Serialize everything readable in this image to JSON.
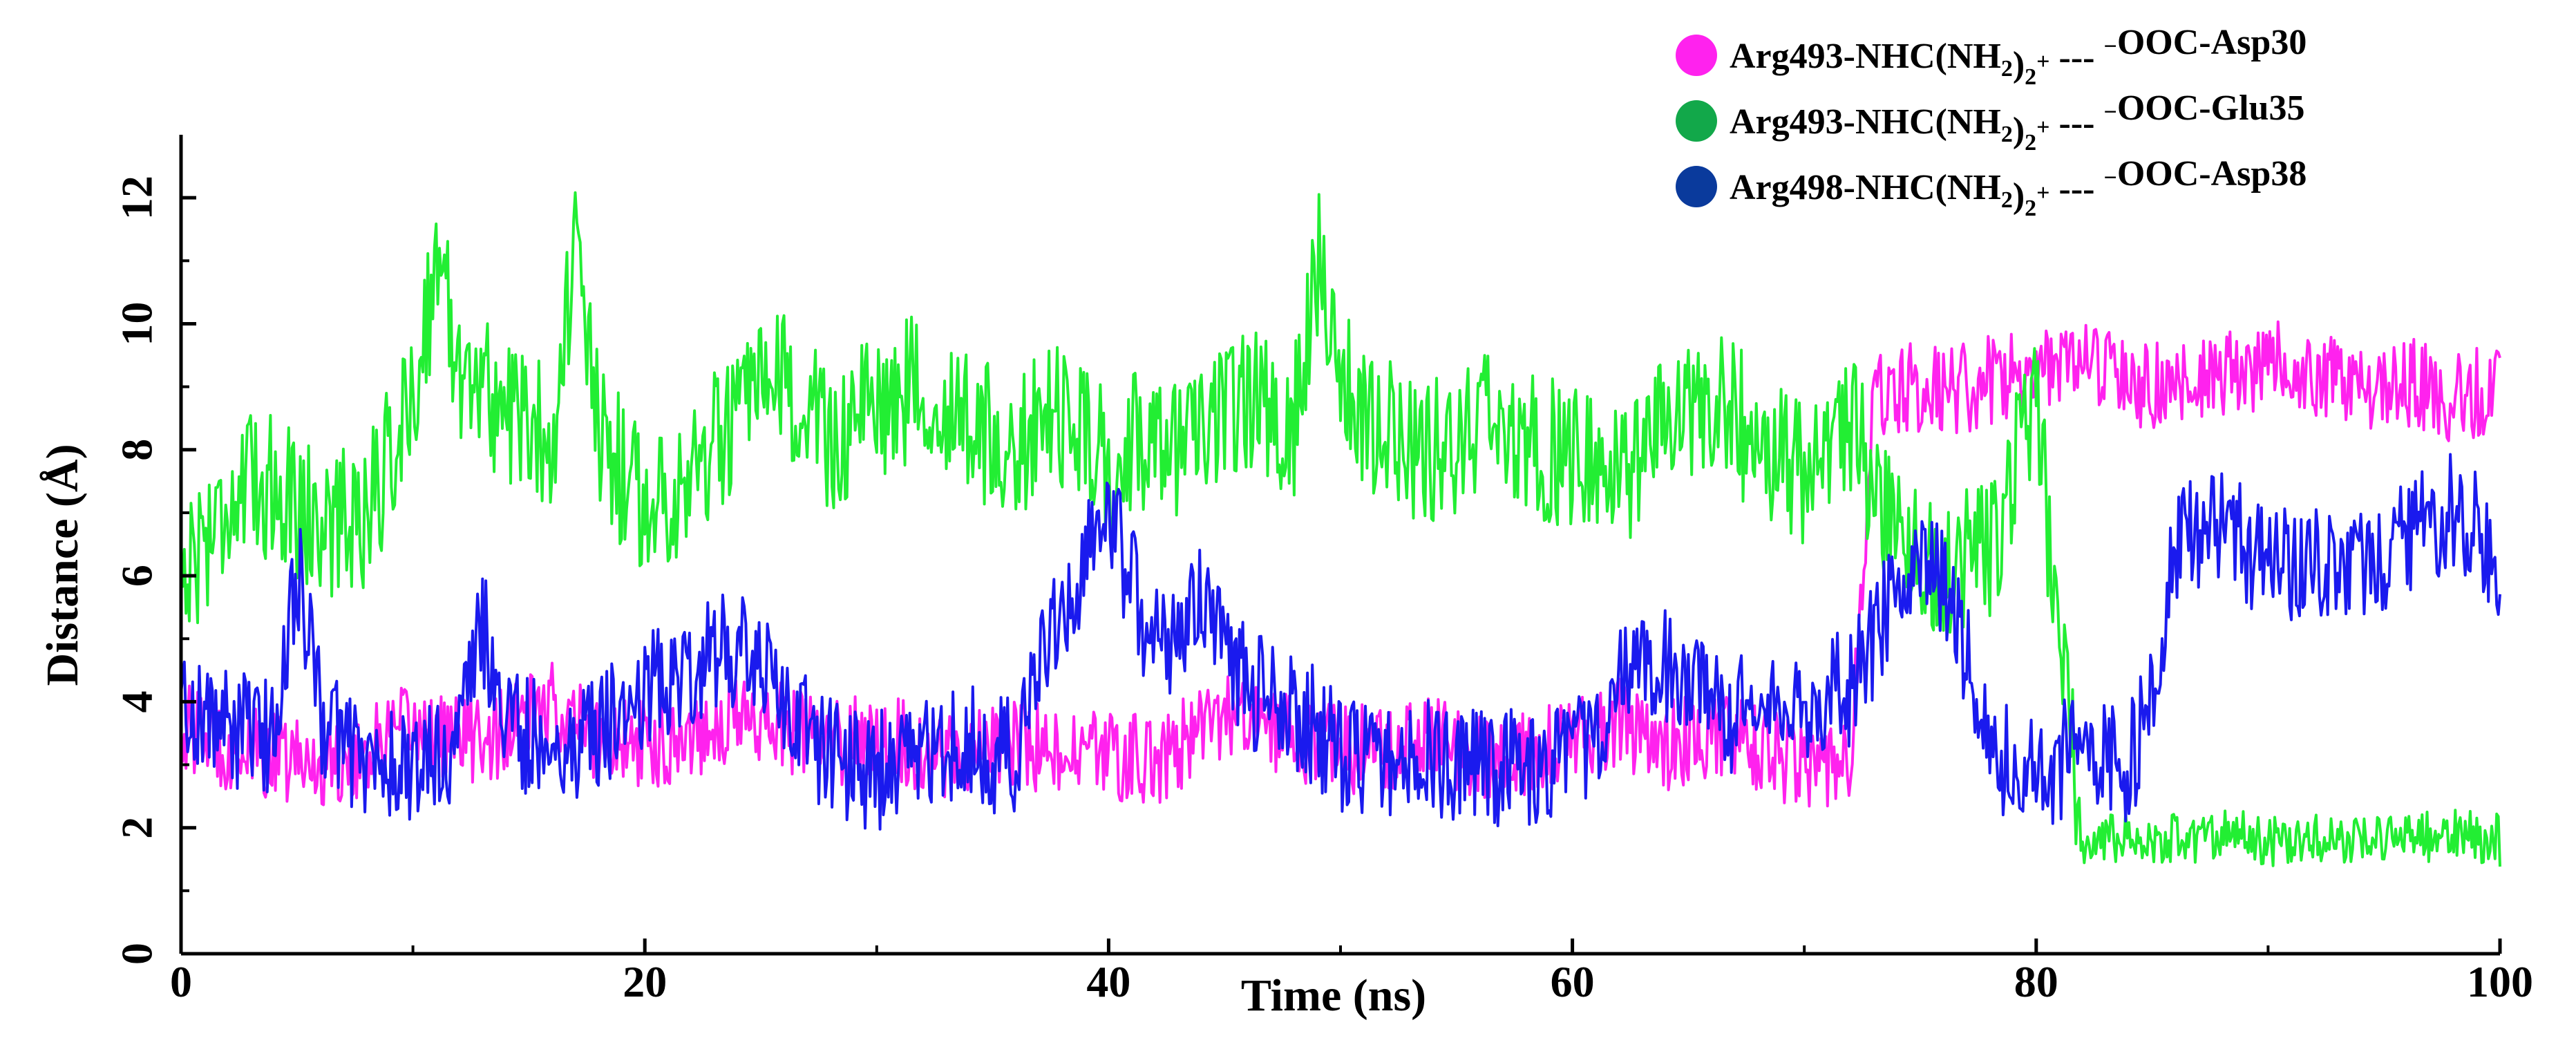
{
  "chart_data": {
    "type": "line",
    "xlabel": "Time (ns)",
    "ylabel": "Distance (Å)",
    "xlim": [
      0,
      100
    ],
    "ylim": [
      0,
      13
    ],
    "x_ticks": [
      "0",
      "20",
      "40",
      "60",
      "80",
      "100"
    ],
    "y_ticks": [
      "0",
      "2",
      "4",
      "6",
      "8",
      "10",
      "12"
    ],
    "grid": false,
    "legend_position": "top-right",
    "series": [
      {
        "name": "Arg493-NHC(NH2)2+ --- -OOC-Asp30",
        "legend": {
          "prefix": "Arg493-NHC(NH",
          "sub": "2",
          "mid": ")",
          "sub2": "2",
          "sup": "+",
          "dash": " --- ",
          "sup2": "−",
          "suffix": "OOC-Asp30"
        },
        "color": "#ff22ee",
        "marker_color": "#ff22ee",
        "x": [
          0,
          2,
          4,
          6,
          8,
          10,
          12,
          14,
          16,
          18,
          20,
          22,
          24,
          26,
          28,
          30,
          32,
          34,
          36,
          38,
          40,
          42,
          44,
          46,
          48,
          50,
          52,
          54,
          56,
          58,
          60,
          62,
          64,
          66,
          68,
          70,
          72,
          73,
          74,
          76,
          78,
          80,
          82,
          84,
          86,
          88,
          90,
          92,
          94,
          96,
          98,
          100
        ],
        "y": [
          3.6,
          3.3,
          3.1,
          3.0,
          3.2,
          3.6,
          3.4,
          3.5,
          3.9,
          3.4,
          3.3,
          3.5,
          3.8,
          3.6,
          3.3,
          3.5,
          3.2,
          3.2,
          3.4,
          3.1,
          3.2,
          3.0,
          3.6,
          3.8,
          3.4,
          3.2,
          3.3,
          3.5,
          3.1,
          3.2,
          3.4,
          3.7,
          3.3,
          3.5,
          3.2,
          3.0,
          3.1,
          8.8,
          9.0,
          8.9,
          9.1,
          9.2,
          9.3,
          9.1,
          9.0,
          9.1,
          9.4,
          9.2,
          8.9,
          9.1,
          8.8,
          9.0
        ]
      },
      {
        "name": "Arg493-NHC(NH2)2+ --- -OOC-Glu35",
        "legend": {
          "prefix": "Arg493-NHC(NH",
          "sub": "2",
          "mid": ")",
          "sub2": "2",
          "sup": "+",
          "dash": " --- ",
          "sup2": "−",
          "suffix": "OOC-Glu35"
        },
        "color": "#22ee33",
        "marker_color": "#12a84a",
        "x": [
          0,
          2,
          4,
          6,
          8,
          10,
          11,
          12,
          14,
          16,
          17,
          18,
          20,
          22,
          24,
          26,
          28,
          30,
          32,
          34,
          36,
          38,
          40,
          42,
          44,
          46,
          48,
          49,
          50,
          52,
          54,
          56,
          58,
          60,
          62,
          64,
          66,
          68,
          70,
          72,
          74,
          76,
          78,
          80,
          81,
          82,
          84,
          86,
          88,
          90,
          92,
          94,
          96,
          98,
          100
        ],
        "y": [
          6.0,
          7.2,
          7.5,
          6.8,
          7.0,
          8.8,
          11.0,
          9.4,
          8.6,
          8.2,
          11.2,
          8.2,
          7.1,
          7.6,
          8.5,
          9.0,
          8.1,
          8.7,
          9.1,
          8.3,
          8.0,
          8.6,
          7.8,
          8.3,
          8.0,
          8.9,
          8.4,
          11.0,
          9.0,
          8.3,
          7.9,
          8.4,
          8.0,
          7.9,
          7.5,
          8.3,
          8.9,
          8.1,
          7.6,
          8.3,
          6.8,
          6.1,
          6.5,
          8.7,
          5.0,
          1.8,
          1.9,
          1.8,
          1.9,
          1.8,
          1.8,
          1.9,
          1.8,
          1.9,
          1.8
        ]
      },
      {
        "name": "Arg498-NHC(NH2)2+ --- -OOC-Asp38",
        "legend": {
          "prefix": "Arg498-NHC(NH",
          "sub": "2",
          "mid": ")",
          "sub2": "2",
          "sup": "+",
          "dash": " --- ",
          "sup2": "−",
          "suffix": "OOC-Asp38"
        },
        "color": "#1a1aee",
        "marker_color": "#0a3a9c",
        "x": [
          0,
          2,
          4,
          5,
          6,
          8,
          10,
          12,
          13,
          14,
          16,
          18,
          20,
          22,
          24,
          26,
          28,
          30,
          32,
          34,
          36,
          38,
          40,
          42,
          44,
          46,
          48,
          50,
          52,
          54,
          56,
          58,
          60,
          62,
          64,
          66,
          68,
          70,
          72,
          74,
          76,
          78,
          80,
          82,
          84,
          85,
          86,
          88,
          90,
          92,
          94,
          96,
          98,
          100
        ],
        "y": [
          4.0,
          3.6,
          3.4,
          6.2,
          3.8,
          3.0,
          2.9,
          3.4,
          5.2,
          3.6,
          3.3,
          3.5,
          4.2,
          4.6,
          4.9,
          4.0,
          3.1,
          2.9,
          3.2,
          3.3,
          3.1,
          5.6,
          7.0,
          4.8,
          5.6,
          4.2,
          3.9,
          3.2,
          3.0,
          3.1,
          3.0,
          2.9,
          3.0,
          4.2,
          4.6,
          3.9,
          3.7,
          4.0,
          4.2,
          5.8,
          6.0,
          3.2,
          2.9,
          3.2,
          2.9,
          4.3,
          6.6,
          6.8,
          6.1,
          6.3,
          6.2,
          6.6,
          7.1,
          6.3
        ]
      }
    ]
  }
}
